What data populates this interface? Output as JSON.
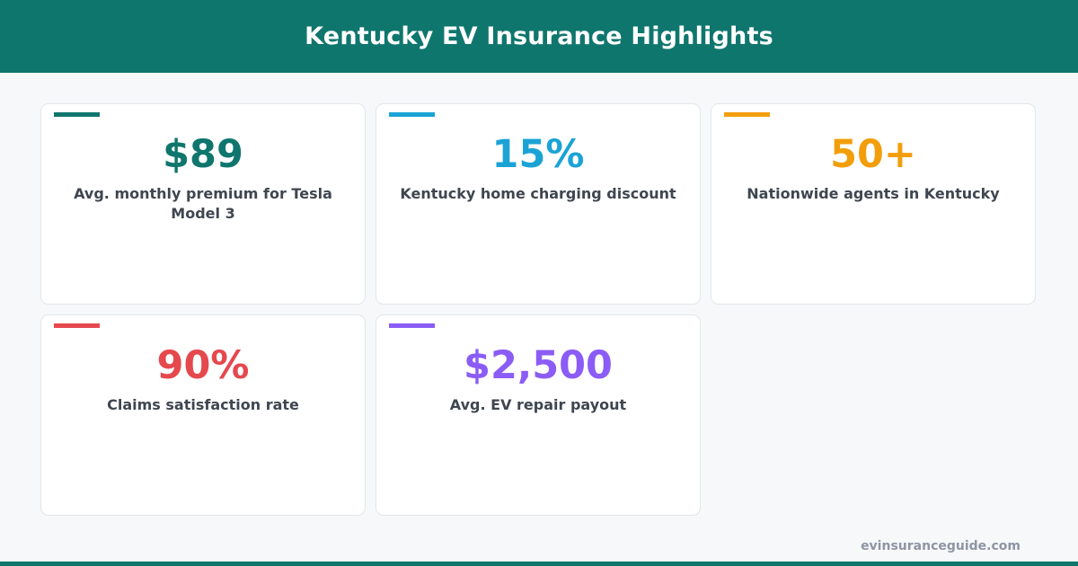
{
  "header": {
    "title": "Kentucky EV Insurance Highlights"
  },
  "cards": [
    {
      "value": "$89",
      "label": "Avg. monthly premium for Tesla Model 3",
      "color": "#0f766e"
    },
    {
      "value": "15%",
      "label": "Kentucky home charging discount",
      "color": "#1ba3d6"
    },
    {
      "value": "50+",
      "label": "Nationwide agents in Kentucky",
      "color": "#f29e0c"
    },
    {
      "value": "90%",
      "label": "Claims satisfaction rate",
      "color": "#e5484d"
    },
    {
      "value": "$2,500",
      "label": "Avg. EV repair payout",
      "color": "#8b5cf6"
    }
  ],
  "footer": {
    "url": "evinsuranceguide.com"
  },
  "theme": {
    "brand": "#0f766e"
  }
}
